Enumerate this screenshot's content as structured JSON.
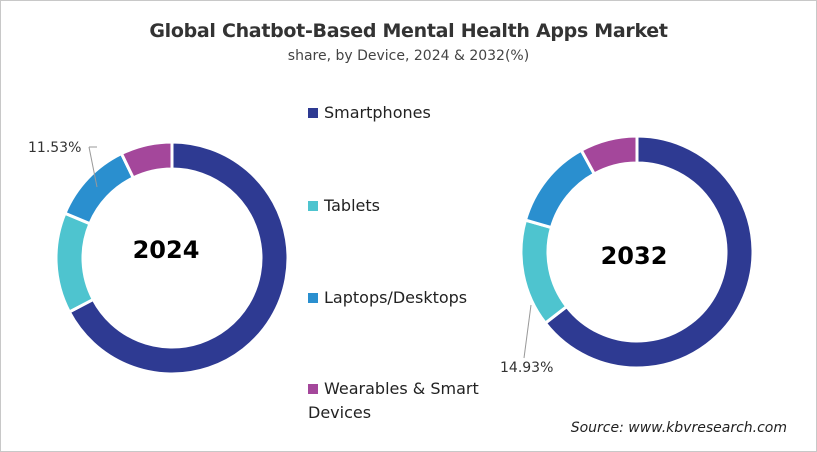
{
  "chart_data": [
    {
      "type": "pie",
      "title": "Global Chatbot-Based Mental Health Apps Market",
      "subtitle": "share, by Device, 2024 & 2032(%)",
      "center_label": "2024",
      "categories": [
        "Smartphones",
        "Tablets",
        "Laptops/Desktops",
        "Wearables & Smart Devices"
      ],
      "values": [
        67.3,
        14.0,
        11.53,
        7.17
      ],
      "data_labels": {
        "Laptops/Desktops": "11.53%"
      },
      "donut": true
    },
    {
      "type": "pie",
      "center_label": "2032",
      "categories": [
        "Smartphones",
        "Tablets",
        "Laptops/Desktops",
        "Wearables & Smart Devices"
      ],
      "values": [
        64.5,
        14.93,
        12.6,
        7.97
      ],
      "data_labels": {
        "Tablets": "14.93%"
      },
      "donut": true
    }
  ],
  "header": {
    "title": "Global Chatbot-Based Mental Health Apps Market",
    "subtitle": "share, by Device, 2024 & 2032(%)"
  },
  "legend": {
    "placement": "center",
    "items": [
      {
        "label": "Smartphones",
        "color": "#2e3a92"
      },
      {
        "label": "Tablets",
        "color": "#4ec4cf"
      },
      {
        "label": "Laptops/Desktops",
        "color": "#2a8fcf"
      },
      {
        "label": "Wearables & Smart Devices",
        "color": "#a4479b"
      }
    ]
  },
  "labels": {
    "y2024_callout": "11.53%",
    "y2032_callout": "14.93%",
    "y2024": "2024",
    "y2032": "2032"
  },
  "source": "Source: www.kbvresearch.com"
}
